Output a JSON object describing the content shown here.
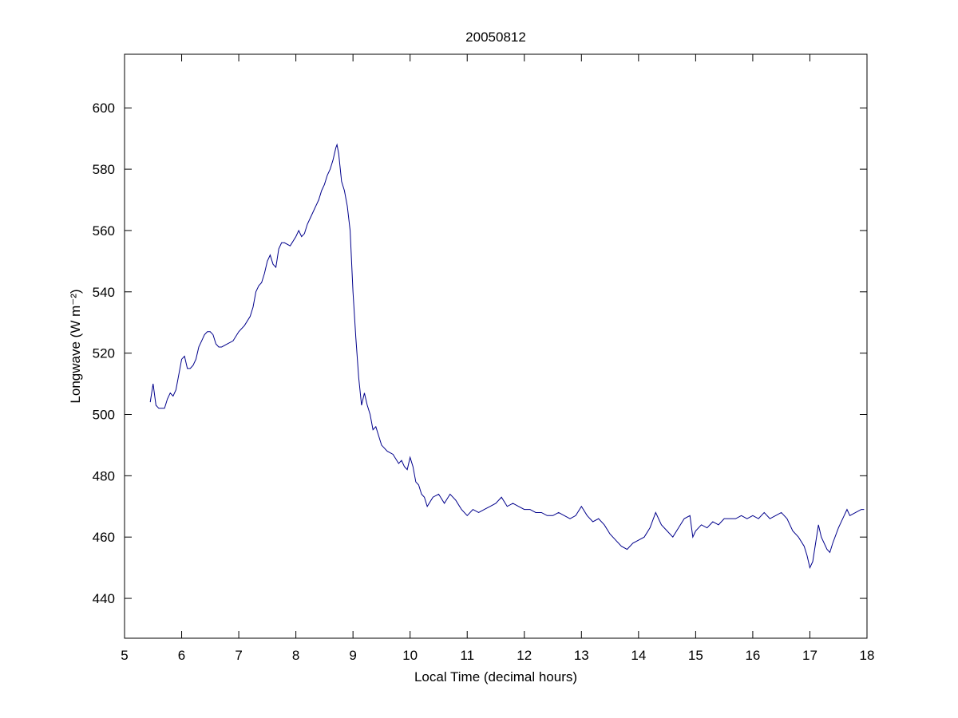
{
  "chart_data": {
    "type": "line",
    "title": "20050812",
    "xlabel": "Local Time (decimal hours)",
    "ylabel": "Longwave (W m⁻²)",
    "color": "#00008b",
    "xlim": [
      5,
      18
    ],
    "xticks": [
      5,
      6,
      7,
      8,
      9,
      10,
      11,
      12,
      13,
      14,
      15,
      16,
      17,
      18
    ],
    "ylim": [
      427,
      617.5
    ],
    "yticks": [
      440,
      460,
      480,
      500,
      520,
      540,
      560,
      580,
      600
    ],
    "x": [
      5.45,
      5.5,
      5.55,
      5.6,
      5.7,
      5.75,
      5.8,
      5.85,
      5.9,
      5.95,
      6.0,
      6.05,
      6.1,
      6.15,
      6.2,
      6.25,
      6.3,
      6.35,
      6.4,
      6.45,
      6.5,
      6.55,
      6.6,
      6.65,
      6.7,
      6.8,
      6.9,
      7.0,
      7.1,
      7.2,
      7.25,
      7.3,
      7.35,
      7.4,
      7.45,
      7.5,
      7.55,
      7.6,
      7.65,
      7.7,
      7.75,
      7.8,
      7.9,
      8.0,
      8.05,
      8.1,
      8.15,
      8.2,
      8.3,
      8.35,
      8.4,
      8.45,
      8.5,
      8.55,
      8.6,
      8.65,
      8.7,
      8.72,
      8.75,
      8.8,
      8.85,
      8.9,
      8.95,
      9.0,
      9.05,
      9.1,
      9.15,
      9.2,
      9.25,
      9.3,
      9.35,
      9.4,
      9.45,
      9.5,
      9.6,
      9.7,
      9.8,
      9.85,
      9.9,
      9.95,
      10.0,
      10.05,
      10.1,
      10.15,
      10.2,
      10.25,
      10.3,
      10.4,
      10.5,
      10.6,
      10.7,
      10.8,
      10.9,
      11.0,
      11.1,
      11.2,
      11.3,
      11.4,
      11.5,
      11.6,
      11.7,
      11.8,
      11.9,
      12.0,
      12.1,
      12.2,
      12.3,
      12.4,
      12.5,
      12.6,
      12.7,
      12.8,
      12.9,
      13.0,
      13.1,
      13.2,
      13.3,
      13.4,
      13.5,
      13.6,
      13.7,
      13.8,
      13.9,
      14.0,
      14.1,
      14.2,
      14.3,
      14.4,
      14.5,
      14.6,
      14.7,
      14.8,
      14.9,
      14.95,
      15.0,
      15.1,
      15.2,
      15.3,
      15.4,
      15.5,
      15.6,
      15.7,
      15.8,
      15.9,
      16.0,
      16.1,
      16.2,
      16.3,
      16.4,
      16.5,
      16.6,
      16.7,
      16.8,
      16.9,
      16.95,
      17.0,
      17.05,
      17.1,
      17.15,
      17.2,
      17.3,
      17.35,
      17.4,
      17.5,
      17.6,
      17.65,
      17.7,
      17.8,
      17.9,
      17.95
    ],
    "values": [
      504,
      510,
      503,
      502,
      502,
      505,
      507,
      506,
      508,
      513,
      518,
      519,
      515,
      515,
      516,
      518,
      522,
      524,
      526,
      527,
      527,
      526,
      523,
      522,
      522,
      523,
      524,
      527,
      529,
      532,
      535,
      540,
      542,
      543,
      546,
      550,
      552,
      549,
      548,
      554,
      556,
      556,
      555,
      558,
      560,
      558,
      559,
      562,
      566,
      568,
      570,
      573,
      575,
      578,
      580,
      583,
      587,
      588,
      585,
      576,
      573,
      568,
      560,
      540,
      525,
      512,
      503,
      507,
      503,
      500,
      495,
      496,
      493,
      490,
      488,
      487,
      484,
      485,
      483,
      482,
      486,
      483,
      478,
      477,
      474,
      473,
      470,
      473,
      474,
      471,
      474,
      472,
      469,
      467,
      469,
      468,
      469,
      470,
      471,
      473,
      470,
      471,
      470,
      469,
      469,
      468,
      468,
      467,
      467,
      468,
      467,
      466,
      467,
      470,
      467,
      465,
      466,
      464,
      461,
      459,
      457,
      456,
      458,
      459,
      460,
      463,
      468,
      464,
      462,
      460,
      463,
      466,
      467,
      460,
      462,
      464,
      463,
      465,
      464,
      466,
      466,
      466,
      467,
      466,
      467,
      466,
      468,
      466,
      467,
      468,
      466,
      462,
      460,
      457,
      454,
      450,
      452,
      458,
      464,
      460,
      456,
      455,
      458,
      463,
      467,
      469,
      467,
      468,
      469,
      469
    ]
  }
}
